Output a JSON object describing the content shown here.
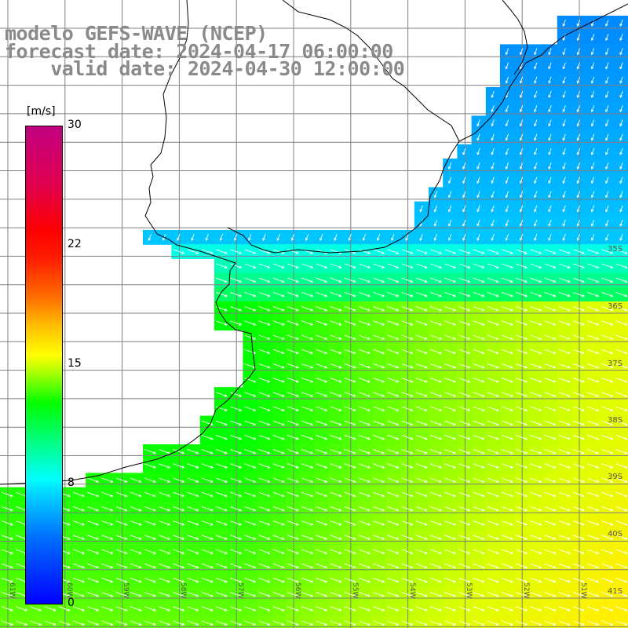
{
  "titles": {
    "line1": "modelo GEFS-WAVE (NCEP)",
    "line2": "forecast date: 2024-04-17 06:00:00",
    "line3": "    valid date: 2024-04-30 12:00:00"
  },
  "colorbar": {
    "unit": "[m/s]",
    "ticks": [
      "30",
      "22",
      "15",
      "8",
      "0"
    ],
    "colors": [
      "#0000ff",
      "#00ffff",
      "#00ff00",
      "#ffff00",
      "#ff0000",
      "#c00080"
    ]
  },
  "lat_labels": [
    "35S",
    "36S",
    "37S",
    "38S",
    "39S",
    "40S",
    "41S"
  ],
  "lon_labels": [
    "61W",
    "60W",
    "59W",
    "58W",
    "57W",
    "56W",
    "55W",
    "54W",
    "53W",
    "52W",
    "51W"
  ]
}
